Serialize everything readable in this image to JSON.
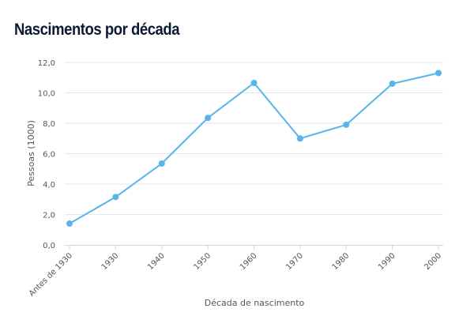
{
  "chart_data": {
    "type": "line",
    "title": "Nascimentos por década",
    "xlabel": "Década de nascimento",
    "ylabel": "Pessoas (1000)",
    "categories": [
      "Antes de 1930",
      "1930",
      "1940",
      "1950",
      "1960",
      "1970",
      "1980",
      "1990",
      "2000"
    ],
    "values": [
      1.4,
      3.15,
      5.35,
      8.35,
      10.65,
      7.0,
      7.9,
      10.6,
      11.3
    ],
    "ylim": [
      0,
      12
    ],
    "yticks": [
      "0,0",
      "2,0",
      "4,0",
      "6,0",
      "8,0",
      "10,0",
      "12,0"
    ],
    "grid": true,
    "legend": "none",
    "colors": {
      "line": "#58b4ea",
      "grid": "#e6e6e6",
      "axis": "#ccd6eb",
      "title": "#0b1a33"
    }
  }
}
